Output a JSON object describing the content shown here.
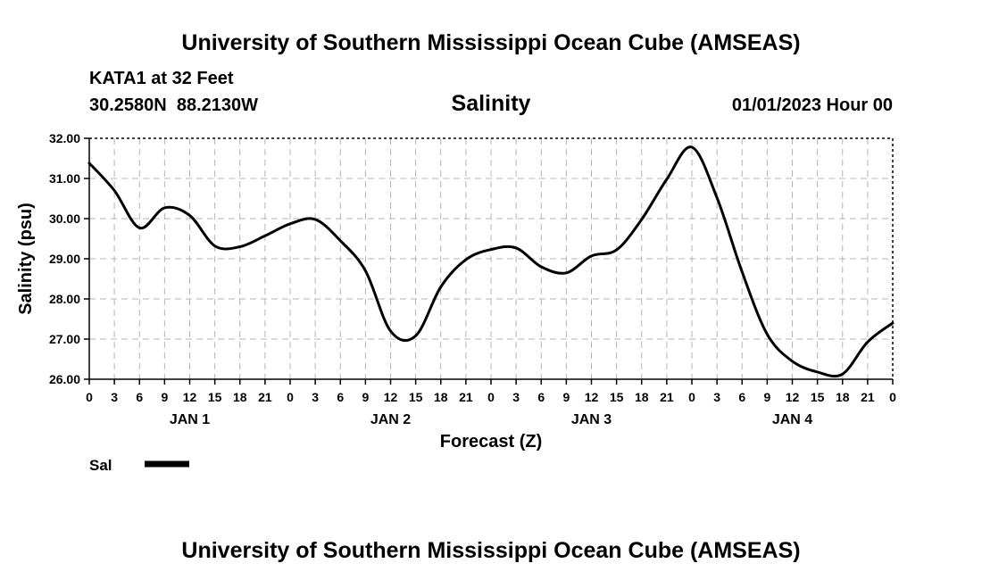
{
  "header": {
    "title": "University of Southern Mississippi Ocean Cube (AMSEAS)",
    "station": "KATA1 at 32 Feet",
    "coords": "30.2580N  88.2130W",
    "chart_title": "Salinity",
    "datetime": "01/01/2023 Hour 00"
  },
  "footer": {
    "title": "University of Southern Mississippi Ocean Cube (AMSEAS)"
  },
  "colors": {
    "line": "#000000",
    "grid": "#b4b4b4",
    "axis": "#000000"
  },
  "chart_data": {
    "type": "line",
    "title": "Salinity",
    "xlabel": "Forecast (Z)",
    "ylabel": "Salinity (psu)",
    "xlim": [
      0,
      96
    ],
    "ylim": [
      26,
      32
    ],
    "ytick_values": [
      26,
      27,
      28,
      29,
      30,
      31,
      32
    ],
    "ytick_labels": [
      "26.00",
      "27.00",
      "28.00",
      "29.00",
      "30.00",
      "31.00",
      "32.00"
    ],
    "xtick_hours": [
      0,
      3,
      6,
      9,
      12,
      15,
      18,
      21,
      24,
      27,
      30,
      33,
      36,
      39,
      42,
      45,
      48,
      51,
      54,
      57,
      60,
      63,
      66,
      69,
      72,
      75,
      78,
      81,
      84,
      87,
      90,
      93,
      96
    ],
    "xtick_labels": [
      "0",
      "3",
      "6",
      "9",
      "12",
      "15",
      "18",
      "21",
      "0",
      "3",
      "6",
      "9",
      "12",
      "15",
      "18",
      "21",
      "0",
      "3",
      "6",
      "9",
      "12",
      "15",
      "18",
      "21",
      "0",
      "3",
      "6",
      "9",
      "12",
      "15",
      "18",
      "21",
      "0"
    ],
    "day_labels": [
      {
        "label": "JAN 1",
        "hour": 12
      },
      {
        "label": "JAN 2",
        "hour": 36
      },
      {
        "label": "JAN 3",
        "hour": 60
      },
      {
        "label": "JAN 4",
        "hour": 84
      }
    ],
    "grid": true,
    "legend": {
      "placement": "bottom-left",
      "label": "Sal"
    },
    "series": [
      {
        "name": "Sal",
        "x": [
          0,
          3,
          6,
          9,
          12,
          15,
          18,
          21,
          24,
          27,
          30,
          33,
          36,
          39,
          42,
          45,
          48,
          51,
          54,
          57,
          60,
          63,
          66,
          69,
          72,
          75,
          78,
          81,
          84,
          87,
          90,
          93,
          96
        ],
        "values": [
          31.38,
          30.7,
          29.77,
          30.27,
          30.08,
          29.32,
          29.3,
          29.57,
          29.87,
          29.98,
          29.45,
          28.7,
          27.2,
          27.08,
          28.3,
          28.98,
          29.23,
          29.27,
          28.8,
          28.65,
          29.07,
          29.22,
          29.98,
          30.98,
          31.78,
          30.52,
          28.67,
          27.12,
          26.45,
          26.18,
          26.13,
          26.93,
          27.4
        ]
      }
    ]
  }
}
